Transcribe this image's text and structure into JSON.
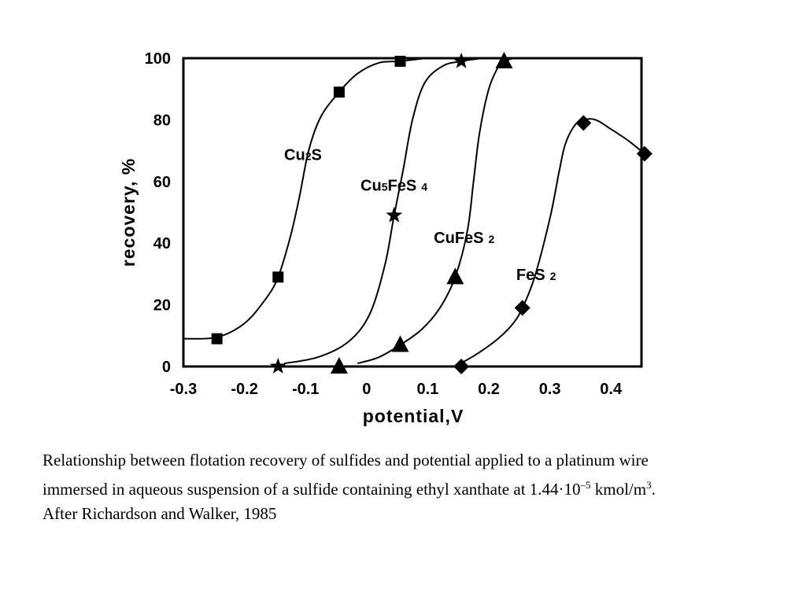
{
  "chart_data": {
    "type": "scatter",
    "xlabel": "potential,V",
    "ylabel": "recovery, %",
    "xlim": [
      -0.3,
      0.45
    ],
    "ylim": [
      0,
      100
    ],
    "x_ticks": [
      "-0.3",
      "-0.2",
      "-0.1",
      "0",
      "0.1",
      "0.2",
      "0.3",
      "0.4"
    ],
    "x_tick_values": [
      -0.3,
      -0.2,
      -0.1,
      0,
      0.1,
      0.2,
      0.3,
      0.4
    ],
    "y_ticks": [
      "0",
      "20",
      "40",
      "60",
      "80",
      "100"
    ],
    "y_tick_values": [
      0,
      20,
      40,
      60,
      80,
      100
    ],
    "grid": false,
    "legend": "none",
    "series": [
      {
        "name": "Cu2S",
        "label": {
          "main": "Cu",
          "sub1": "2",
          "rest": "S",
          "sub2": ""
        },
        "marker": "square",
        "points": [
          [
            -0.245,
            9
          ],
          [
            -0.145,
            29
          ],
          [
            -0.045,
            89
          ],
          [
            0.055,
            99
          ]
        ],
        "curve": [
          [
            -0.3,
            9
          ],
          [
            -0.245,
            9.5
          ],
          [
            -0.2,
            14
          ],
          [
            -0.165,
            22
          ],
          [
            -0.145,
            29
          ],
          [
            -0.125,
            42
          ],
          [
            -0.11,
            55
          ],
          [
            -0.095,
            70
          ],
          [
            -0.075,
            81
          ],
          [
            -0.045,
            89
          ],
          [
            -0.015,
            95
          ],
          [
            0.02,
            98.5
          ],
          [
            0.055,
            99
          ],
          [
            0.1,
            100
          ],
          [
            0.14,
            100
          ]
        ]
      },
      {
        "name": "Cu5FeS4",
        "label": {
          "main": "Cu",
          "sub1": "5",
          "rest": "FeS",
          "sub2": "4"
        },
        "marker": "star",
        "points": [
          [
            -0.145,
            0
          ],
          [
            0.045,
            49
          ],
          [
            0.155,
            99
          ]
        ],
        "curve": [
          [
            -0.135,
            1
          ],
          [
            -0.08,
            3
          ],
          [
            -0.03,
            8
          ],
          [
            0.005,
            17
          ],
          [
            0.03,
            33
          ],
          [
            0.045,
            49
          ],
          [
            0.06,
            64
          ],
          [
            0.075,
            80
          ],
          [
            0.095,
            92
          ],
          [
            0.125,
            97.5
          ],
          [
            0.155,
            99
          ],
          [
            0.19,
            100
          ]
        ]
      },
      {
        "name": "CuFeS2",
        "label": {
          "main": "CuFeS",
          "sub1": "",
          "rest": "",
          "sub2": "2"
        },
        "marker": "triangle",
        "points": [
          [
            -0.045,
            0
          ],
          [
            0.055,
            7
          ],
          [
            0.145,
            29
          ],
          [
            0.225,
            99
          ]
        ],
        "curve": [
          [
            -0.015,
            1
          ],
          [
            0.02,
            3
          ],
          [
            0.055,
            7
          ],
          [
            0.09,
            12
          ],
          [
            0.12,
            19
          ],
          [
            0.145,
            29
          ],
          [
            0.165,
            44
          ],
          [
            0.175,
            60
          ],
          [
            0.185,
            76
          ],
          [
            0.2,
            90
          ],
          [
            0.215,
            97
          ],
          [
            0.225,
            99
          ],
          [
            0.24,
            100
          ]
        ]
      },
      {
        "name": "FeS2",
        "label": {
          "main": "FeS",
          "sub1": "",
          "rest": "",
          "sub2": "2"
        },
        "marker": "diamond",
        "points": [
          [
            0.155,
            0
          ],
          [
            0.255,
            19
          ],
          [
            0.355,
            79
          ],
          [
            0.455,
            69
          ]
        ],
        "curve": [
          [
            0.145,
            0
          ],
          [
            0.18,
            4
          ],
          [
            0.215,
            9
          ],
          [
            0.24,
            14
          ],
          [
            0.255,
            19
          ],
          [
            0.275,
            29
          ],
          [
            0.3,
            48
          ],
          [
            0.315,
            63
          ],
          [
            0.325,
            72
          ],
          [
            0.34,
            78
          ],
          [
            0.355,
            80
          ],
          [
            0.375,
            80
          ],
          [
            0.4,
            77
          ],
          [
            0.43,
            73
          ],
          [
            0.455,
            69
          ]
        ]
      }
    ],
    "series_label_positions": [
      [
        -0.135,
        67
      ],
      [
        -0.01,
        57
      ],
      [
        0.11,
        40
      ],
      [
        0.245,
        28
      ]
    ]
  },
  "caption": {
    "part1": "Relationship between flotation recovery of sulfides and potential applied to a platinum wire immersed in aqueous suspension of a sulfide containing ethyl xanthate at 1.44·10",
    "sup1": "–5",
    "part2": " kmol/m",
    "sup2": "3",
    "part3": ". After Richardson and Walker, 1985"
  }
}
